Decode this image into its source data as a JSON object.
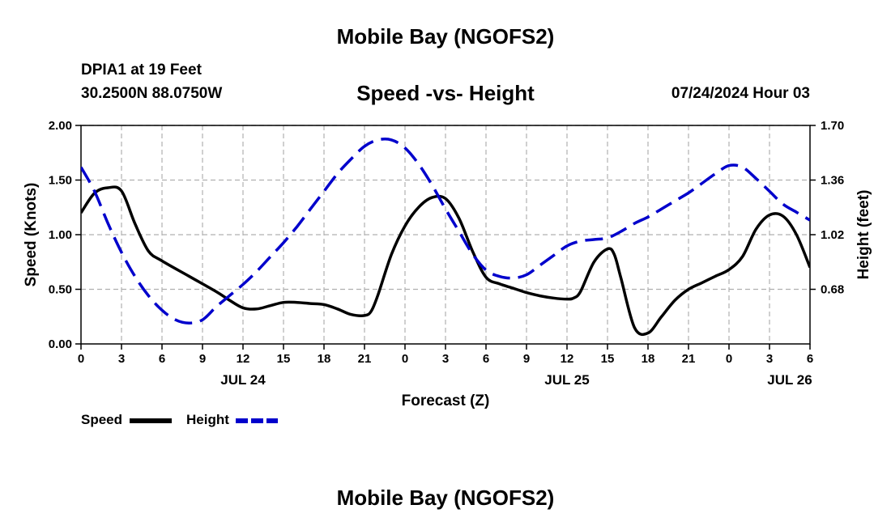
{
  "page": {
    "title_top": "Mobile Bay (NGOFS2)",
    "title_bottom": "Mobile Bay (NGOFS2)",
    "station_line1": "DPIA1 at 19 Feet",
    "station_line2": "30.2500N  88.0750W",
    "chart_title": "Speed -vs- Height",
    "datetime": "07/24/2024 Hour 03"
  },
  "chart_data": {
    "type": "line",
    "title": "Speed -vs- Height",
    "xlabel": "Forecast (Z)",
    "ylabel": "Speed (Knots)",
    "y2label": "Height (feet)",
    "x_range": [
      0,
      54
    ],
    "xticks": [
      {
        "x": 0,
        "label": "0"
      },
      {
        "x": 3,
        "label": "3"
      },
      {
        "x": 6,
        "label": "6"
      },
      {
        "x": 9,
        "label": "9"
      },
      {
        "x": 12,
        "label": "12"
      },
      {
        "x": 15,
        "label": "15"
      },
      {
        "x": 18,
        "label": "18"
      },
      {
        "x": 21,
        "label": "21"
      },
      {
        "x": 24,
        "label": "0"
      },
      {
        "x": 27,
        "label": "3"
      },
      {
        "x": 30,
        "label": "6"
      },
      {
        "x": 33,
        "label": "9"
      },
      {
        "x": 36,
        "label": "12"
      },
      {
        "x": 39,
        "label": "15"
      },
      {
        "x": 42,
        "label": "18"
      },
      {
        "x": 45,
        "label": "21"
      },
      {
        "x": 48,
        "label": "0"
      },
      {
        "x": 51,
        "label": "3"
      },
      {
        "x": 54,
        "label": "6"
      }
    ],
    "date_labels": [
      {
        "x": 12,
        "label": "JUL 24"
      },
      {
        "x": 36,
        "label": "JUL 25"
      },
      {
        "x": 52.5,
        "label": "JUL 26"
      }
    ],
    "ylim": [
      0,
      2
    ],
    "yticks": [
      "0.00",
      "0.50",
      "1.00",
      "1.50",
      "2.00"
    ],
    "y2lim": [
      0.34,
      1.7
    ],
    "y2ticks": [
      "0.68",
      "1.02",
      "1.36",
      "1.70"
    ],
    "grid": true,
    "legend_position": "bottom-left",
    "series": [
      {
        "name": "Speed",
        "axis": "left",
        "color": "#000000",
        "style": "solid",
        "x": [
          0,
          1,
          2,
          3,
          4,
          5,
          6,
          8,
          10,
          11,
          12,
          13,
          14,
          15,
          16,
          17,
          18,
          19,
          20,
          21,
          21.5,
          22,
          23,
          24,
          25,
          26,
          27,
          28,
          29,
          30,
          31,
          32,
          33,
          34,
          35,
          36,
          36.5,
          37,
          38,
          39,
          39.5,
          40,
          41,
          42,
          43,
          44,
          45,
          46,
          47,
          48,
          49,
          50,
          51,
          52,
          53,
          54
        ],
        "values": [
          1.2,
          1.38,
          1.43,
          1.4,
          1.1,
          0.85,
          0.76,
          0.62,
          0.48,
          0.4,
          0.33,
          0.32,
          0.35,
          0.38,
          0.38,
          0.37,
          0.36,
          0.32,
          0.27,
          0.26,
          0.3,
          0.45,
          0.82,
          1.08,
          1.25,
          1.34,
          1.33,
          1.15,
          0.85,
          0.61,
          0.55,
          0.51,
          0.47,
          0.44,
          0.42,
          0.41,
          0.42,
          0.48,
          0.75,
          0.87,
          0.82,
          0.6,
          0.15,
          0.1,
          0.25,
          0.4,
          0.5,
          0.56,
          0.62,
          0.68,
          0.8,
          1.05,
          1.18,
          1.17,
          1.0,
          0.7
        ]
      },
      {
        "name": "Height",
        "axis": "right",
        "color": "#0000cc",
        "style": "dashed",
        "x": [
          0,
          1,
          2,
          3,
          4,
          5,
          6,
          7,
          8,
          9,
          10,
          11,
          12,
          13,
          14,
          15,
          16,
          17,
          18,
          19,
          20,
          21,
          22,
          23,
          24,
          25,
          26,
          27,
          28,
          29,
          30,
          31,
          32,
          33,
          34,
          35,
          36,
          37,
          38,
          39,
          40,
          41,
          42,
          43,
          44,
          45,
          46,
          47,
          48,
          49,
          50,
          51,
          52,
          53,
          54
        ],
        "values": [
          1.44,
          1.29,
          1.09,
          0.91,
          0.76,
          0.64,
          0.55,
          0.49,
          0.47,
          0.49,
          0.57,
          0.64,
          0.71,
          0.79,
          0.88,
          0.97,
          1.07,
          1.18,
          1.29,
          1.4,
          1.49,
          1.57,
          1.61,
          1.61,
          1.56,
          1.46,
          1.33,
          1.18,
          1.04,
          0.9,
          0.8,
          0.76,
          0.75,
          0.77,
          0.83,
          0.89,
          0.95,
          0.98,
          0.99,
          1.0,
          1.04,
          1.09,
          1.13,
          1.18,
          1.23,
          1.28,
          1.34,
          1.4,
          1.45,
          1.44,
          1.37,
          1.29,
          1.21,
          1.16,
          1.11
        ]
      }
    ]
  }
}
